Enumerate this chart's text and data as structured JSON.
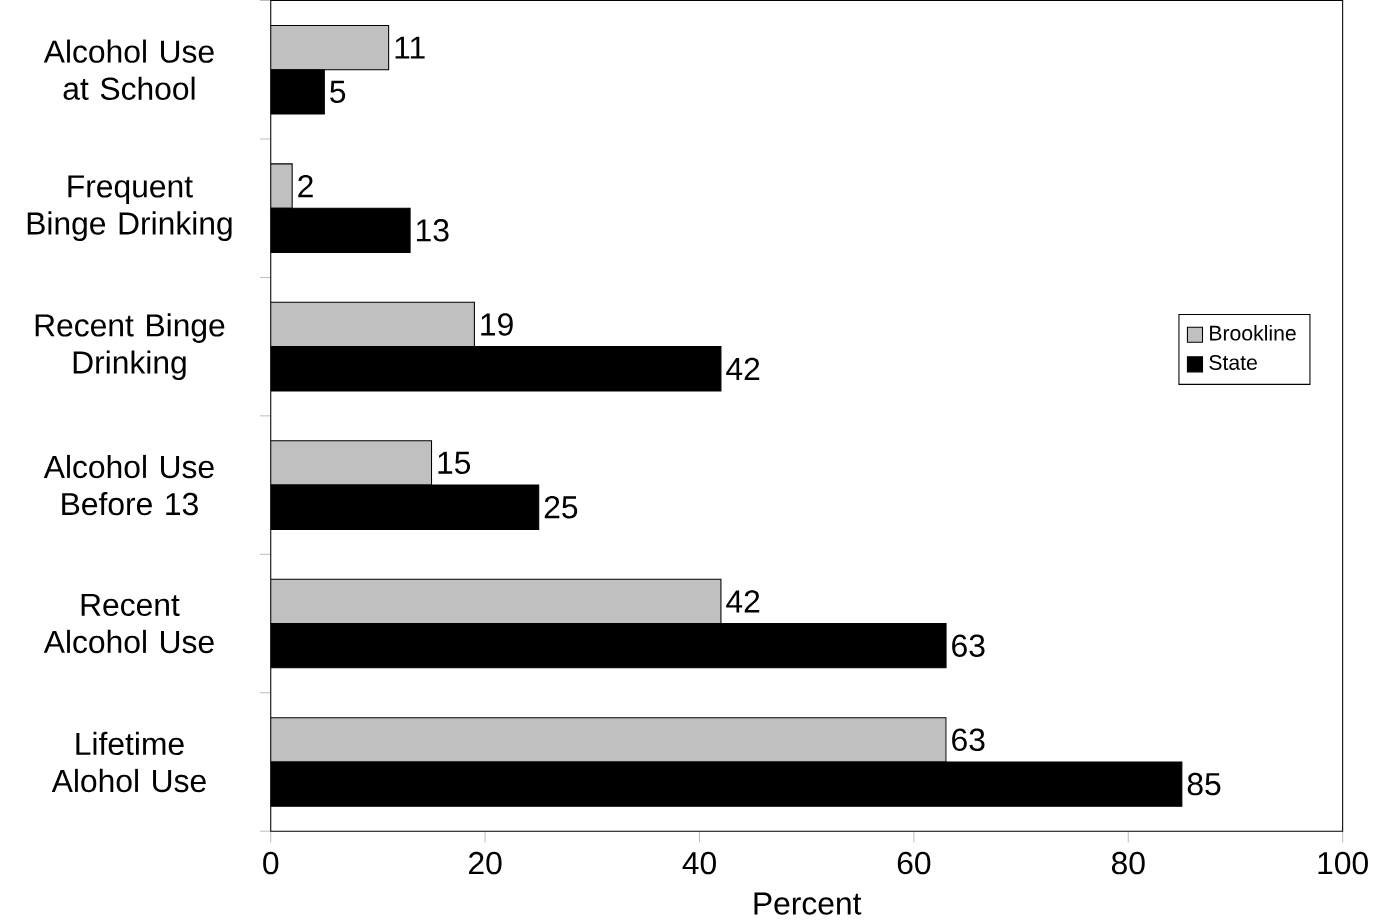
{
  "chart_data": {
    "type": "bar",
    "orientation": "horizontal",
    "xlabel": "Percent",
    "categories": [
      "Alcohol Use at School",
      "Frequent Binge Drinking",
      "Recent Binge Drinking",
      "Alcohol Use Before 13",
      "Recent Alcohol Use",
      "Lifetime Alohol Use"
    ],
    "series": [
      {
        "name": "Brookline",
        "color": "#c0c0c0",
        "values": [
          11,
          2,
          19,
          15,
          42,
          63
        ]
      },
      {
        "name": "State",
        "color": "#000000",
        "values": [
          5,
          13,
          42,
          25,
          63,
          85
        ]
      }
    ],
    "xlim": [
      0,
      100
    ],
    "xticks": [
      0,
      20,
      40,
      60,
      80,
      100
    ],
    "data_labels": true,
    "legend": "right",
    "grid": false
  }
}
